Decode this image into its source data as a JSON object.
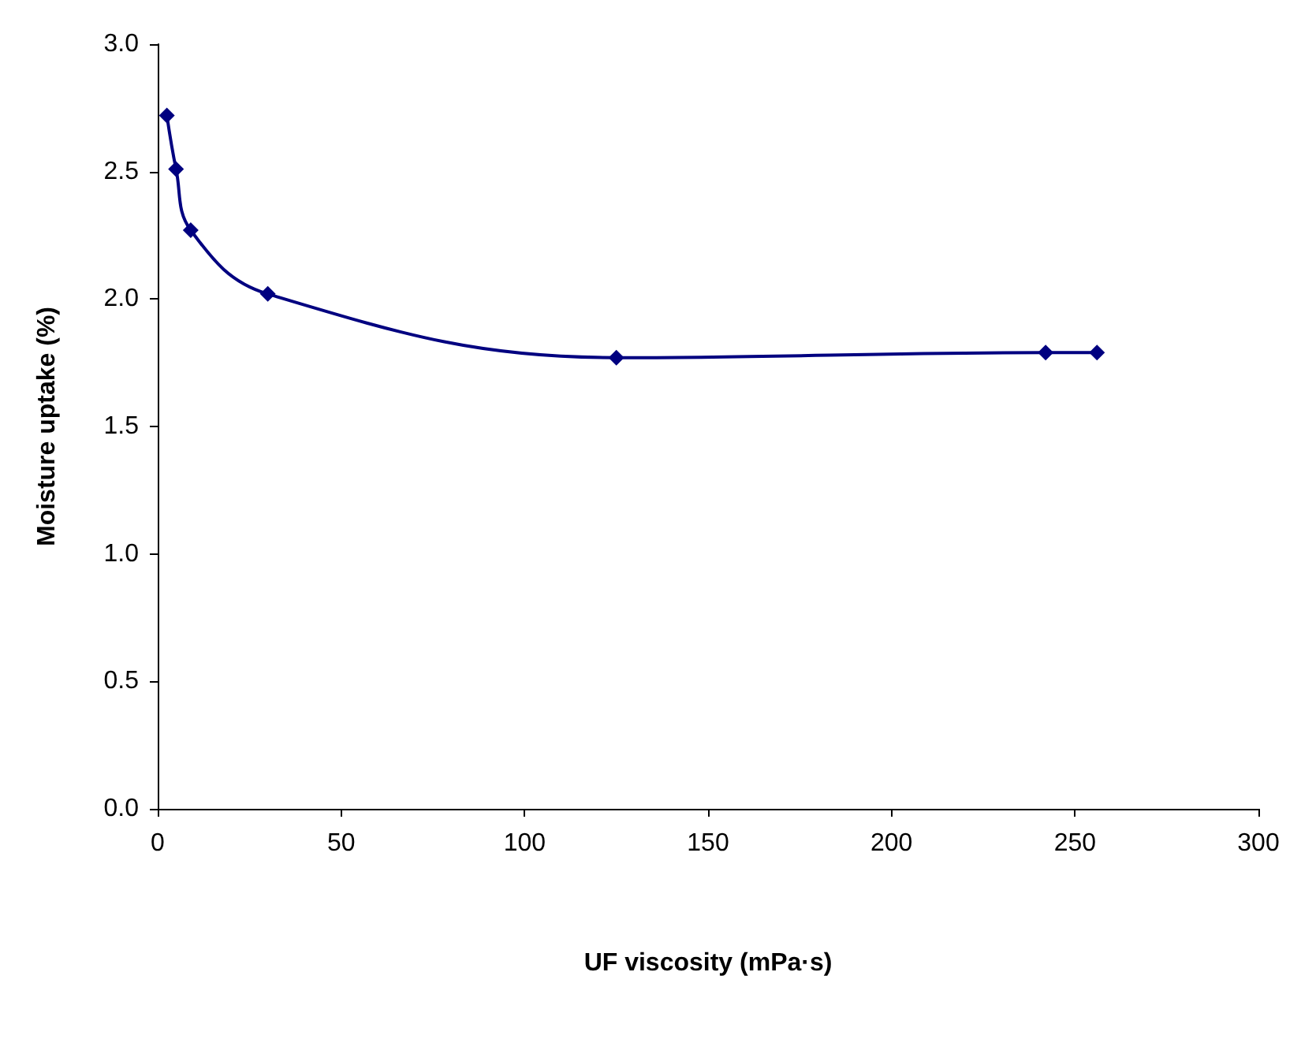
{
  "chart_data": {
    "type": "line",
    "xlabel": "UF viscosity (mPa·s)",
    "ylabel": "Moisture uptake (%)",
    "x": [
      2.5,
      5,
      9,
      30,
      125,
      242,
      256
    ],
    "series": [
      {
        "color": "#000080",
        "values": [
          2.72,
          2.51,
          2.27,
          2.02,
          1.77,
          1.79,
          1.79
        ]
      }
    ],
    "xlim": [
      0,
      300
    ],
    "xticks": [
      0,
      50,
      100,
      150,
      200,
      250,
      300
    ],
    "ylim": [
      0,
      3
    ],
    "yticks": [
      {
        "value": 0,
        "label": "0.0"
      },
      0.5,
      {
        "value": 1,
        "label": "1.0"
      },
      1.5,
      {
        "value": 2,
        "label": "2.0"
      },
      2.5,
      {
        "value": 3,
        "label": "3.0"
      }
    ],
    "grid": false,
    "marker": "diamond",
    "line_style": "solid"
  }
}
